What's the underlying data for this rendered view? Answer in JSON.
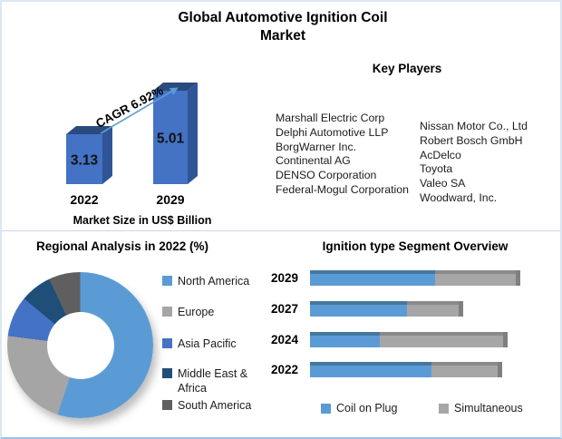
{
  "title": "Global Automotive Ignition Coil Market",
  "key_players": {
    "heading": "Key Players",
    "col1": [
      "Marshall Electric Corp",
      "Delphi Automotive LLP",
      "BorgWarner Inc.",
      "Continental AG",
      "DENSO Corporation",
      "Federal-Mogul Corporation"
    ],
    "col2": [
      "Nissan Motor Co., Ltd",
      "Robert Bosch GmbH",
      "AcDelco",
      "Toyota",
      "Valeo SA",
      "Woodward, Inc."
    ]
  },
  "chart_data": [
    {
      "type": "bar",
      "title": "Market Size in US$ Billion",
      "categories": [
        "2022",
        "2029"
      ],
      "values": [
        3.13,
        5.01
      ],
      "annotation": "CAGR 6.92%",
      "colors": {
        "front": "#4472C4",
        "top": "#2B4A7D",
        "side": "#2F5597",
        "arrow": "#5B9BD5",
        "value_text": "#111111"
      }
    },
    {
      "type": "pie",
      "donut": true,
      "title": "Regional Analysis in 2022 (%)",
      "labels": [
        "North America",
        "Europe",
        "Asia Pacific",
        "Middle East & Africa",
        "South America"
      ],
      "values": [
        55,
        22,
        9,
        7,
        7
      ],
      "colors": [
        "#5B9BD5",
        "#A5A5A5",
        "#4472C4",
        "#1F4E79",
        "#5F5F5F"
      ],
      "start_angle_deg": 0,
      "legend_position": "right"
    },
    {
      "type": "bar",
      "orientation": "horizontal",
      "stacked": true,
      "title": "Ignition type Segment Overview",
      "categories": [
        "2029",
        "2027",
        "2024",
        "2022"
      ],
      "series": [
        {
          "name": "Coil on Plug",
          "color": "#5B9BD5",
          "shade": "#45779F",
          "values": [
            61,
            47,
            34,
            59
          ]
        },
        {
          "name": "Simultaneous",
          "color": "#A6A6A6",
          "shade": "#8A8A8A",
          "values": [
            39,
            25,
            60,
            32
          ]
        }
      ],
      "end_cap_color": "#7F7F7F",
      "xlim": [
        0,
        100
      ],
      "grid": false,
      "legend_position": "bottom"
    }
  ]
}
